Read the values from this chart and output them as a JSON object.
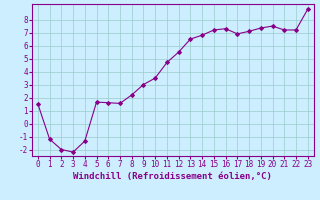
{
  "x": [
    0,
    1,
    2,
    3,
    4,
    5,
    6,
    7,
    8,
    9,
    10,
    11,
    12,
    13,
    14,
    15,
    16,
    17,
    18,
    19,
    20,
    21,
    22,
    23
  ],
  "y": [
    1.5,
    -1.2,
    -2.0,
    -2.2,
    -1.35,
    1.65,
    1.6,
    1.55,
    2.2,
    3.0,
    3.5,
    4.7,
    5.5,
    6.5,
    6.8,
    7.2,
    7.3,
    6.9,
    7.1,
    7.35,
    7.5,
    7.2,
    7.2,
    8.8
  ],
  "line_color": "#880088",
  "marker": "D",
  "marker_size": 2,
  "linewidth": 0.8,
  "bg_color": "#cceeff",
  "grid_color": "#99cccc",
  "xlabel": "Windchill (Refroidissement éolien,°C)",
  "xlabel_fontsize": 6.5,
  "tick_fontsize": 5.5,
  "xlim": [
    -0.5,
    23.5
  ],
  "ylim": [
    -2.5,
    9.2
  ],
  "yticks": [
    -2,
    -1,
    0,
    1,
    2,
    3,
    4,
    5,
    6,
    7,
    8
  ],
  "xticks": [
    0,
    1,
    2,
    3,
    4,
    5,
    6,
    7,
    8,
    9,
    10,
    11,
    12,
    13,
    14,
    15,
    16,
    17,
    18,
    19,
    20,
    21,
    22,
    23
  ]
}
